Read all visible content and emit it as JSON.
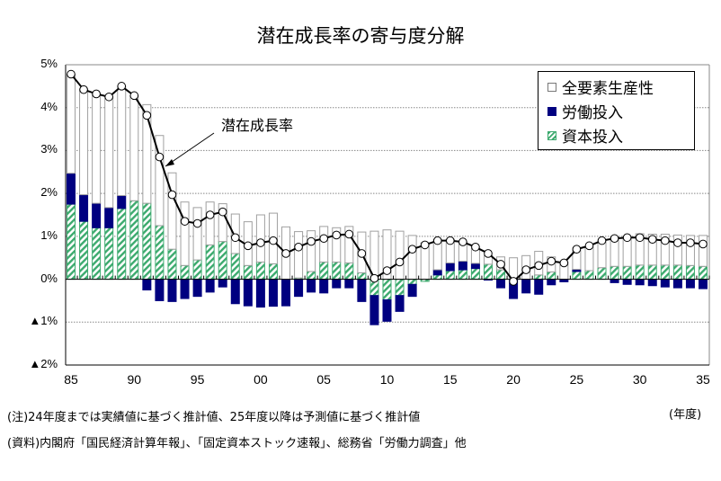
{
  "chart_data": {
    "type": "bar",
    "title": "潜在成長率の寄与度分解",
    "xlabel": "(年度)",
    "ylabel": "",
    "ylim": [
      -2,
      5
    ],
    "yticks": [
      {
        "value": 5,
        "label": "5%"
      },
      {
        "value": 4,
        "label": "4%"
      },
      {
        "value": 3,
        "label": "3%"
      },
      {
        "value": 2,
        "label": "2%"
      },
      {
        "value": 1,
        "label": "1%"
      },
      {
        "value": 0,
        "label": "0%"
      },
      {
        "value": -1,
        "label": "▲1%"
      },
      {
        "value": -2,
        "label": "▲2%"
      }
    ],
    "xticks": [
      "85",
      "90",
      "95",
      "00",
      "05",
      "10",
      "15",
      "20",
      "25",
      "30",
      "35"
    ],
    "grid": true,
    "legend_position": "top-right",
    "annotation": "潜在成長率",
    "x": [
      1985,
      1986,
      1987,
      1988,
      1989,
      1990,
      1991,
      1992,
      1993,
      1994,
      1995,
      1996,
      1997,
      1998,
      1999,
      2000,
      2001,
      2002,
      2003,
      2004,
      2005,
      2006,
      2007,
      2008,
      2009,
      2010,
      2011,
      2012,
      2013,
      2014,
      2015,
      2016,
      2017,
      2018,
      2019,
      2020,
      2021,
      2022,
      2023,
      2024,
      2025,
      2026,
      2027,
      2028,
      2029,
      2030,
      2031,
      2032,
      2033,
      2034,
      2035
    ],
    "series": [
      {
        "name": "全要素生産性",
        "kind": "bar",
        "color": "#ffffff",
        "values": [
          2.3,
          2.45,
          2.55,
          2.58,
          2.55,
          2.45,
          2.3,
          2.1,
          1.78,
          1.48,
          1.22,
          1.0,
          0.88,
          0.92,
          1.02,
          1.1,
          1.18,
          1.22,
          1.08,
          0.95,
          0.83,
          0.8,
          0.85,
          0.95,
          1.12,
          1.15,
          1.12,
          1.02,
          0.85,
          0.7,
          0.55,
          0.45,
          0.38,
          0.2,
          0.3,
          0.5,
          0.55,
          0.55,
          0.35,
          0.4,
          0.45,
          0.55,
          0.63,
          0.68,
          0.7,
          0.73,
          0.72,
          0.72,
          0.7,
          0.7,
          0.72
        ]
      },
      {
        "name": "労働投入",
        "kind": "bar",
        "color": "#000080",
        "values": [
          0.72,
          0.62,
          0.57,
          0.47,
          0.3,
          0.0,
          -0.25,
          -0.5,
          -0.52,
          -0.45,
          -0.4,
          -0.3,
          -0.18,
          -0.57,
          -0.62,
          -0.65,
          -0.63,
          -0.62,
          -0.4,
          -0.3,
          -0.32,
          -0.2,
          -0.2,
          -0.52,
          -0.68,
          -0.5,
          -0.37,
          -0.28,
          0.0,
          0.12,
          0.18,
          0.2,
          0.12,
          -0.02,
          -0.2,
          -0.45,
          -0.32,
          -0.35,
          -0.13,
          -0.06,
          0.05,
          0.0,
          0.0,
          -0.08,
          -0.12,
          -0.13,
          -0.15,
          -0.18,
          -0.2,
          -0.2,
          -0.22
        ]
      },
      {
        "name": "資本投入",
        "kind": "bar",
        "color": "#3caa6e",
        "values": [
          1.75,
          1.35,
          1.2,
          1.2,
          1.65,
          1.83,
          1.77,
          1.25,
          0.7,
          0.32,
          0.45,
          0.8,
          0.88,
          0.6,
          0.32,
          0.4,
          0.36,
          0.0,
          0.03,
          0.18,
          0.4,
          0.4,
          0.38,
          0.15,
          -0.38,
          -0.48,
          -0.38,
          -0.12,
          -0.05,
          0.1,
          0.2,
          0.22,
          0.25,
          0.35,
          0.22,
          0.0,
          0.0,
          0.1,
          0.17,
          0.0,
          0.18,
          0.2,
          0.27,
          0.3,
          0.3,
          0.33,
          0.33,
          0.33,
          0.33,
          0.32,
          0.3
        ]
      },
      {
        "name": "潜在成長率",
        "kind": "line",
        "color": "#000000",
        "values": [
          4.78,
          4.42,
          4.32,
          4.25,
          4.5,
          4.28,
          3.82,
          2.85,
          1.97,
          1.35,
          1.3,
          1.5,
          1.57,
          0.97,
          0.78,
          0.85,
          0.9,
          0.6,
          0.75,
          0.88,
          0.95,
          1.03,
          1.05,
          0.6,
          0.02,
          0.2,
          0.4,
          0.7,
          0.8,
          0.9,
          0.9,
          0.87,
          0.75,
          0.6,
          0.35,
          -0.05,
          0.22,
          0.32,
          0.42,
          0.38,
          0.7,
          0.78,
          0.9,
          0.95,
          0.97,
          0.97,
          0.93,
          0.9,
          0.85,
          0.85,
          0.82
        ]
      }
    ]
  },
  "legend": {
    "items": [
      {
        "label": "全要素生産性"
      },
      {
        "label": "労働投入"
      },
      {
        "label": "資本投入"
      }
    ]
  },
  "notes": {
    "note1": "(注)24年度までは実績値に基づく推計値、25年度以降は予測値に基づく推計値",
    "note2": "(資料)内閣府「国民経済計算年報」、「固定資本ストック速報」、総務省「労働力調査」他",
    "unit": "(年度)"
  },
  "colors": {
    "labor": "#000080",
    "capital_stripe": "#3caa6e",
    "tfp_border": "#a0a0a0",
    "line": "#000000"
  }
}
